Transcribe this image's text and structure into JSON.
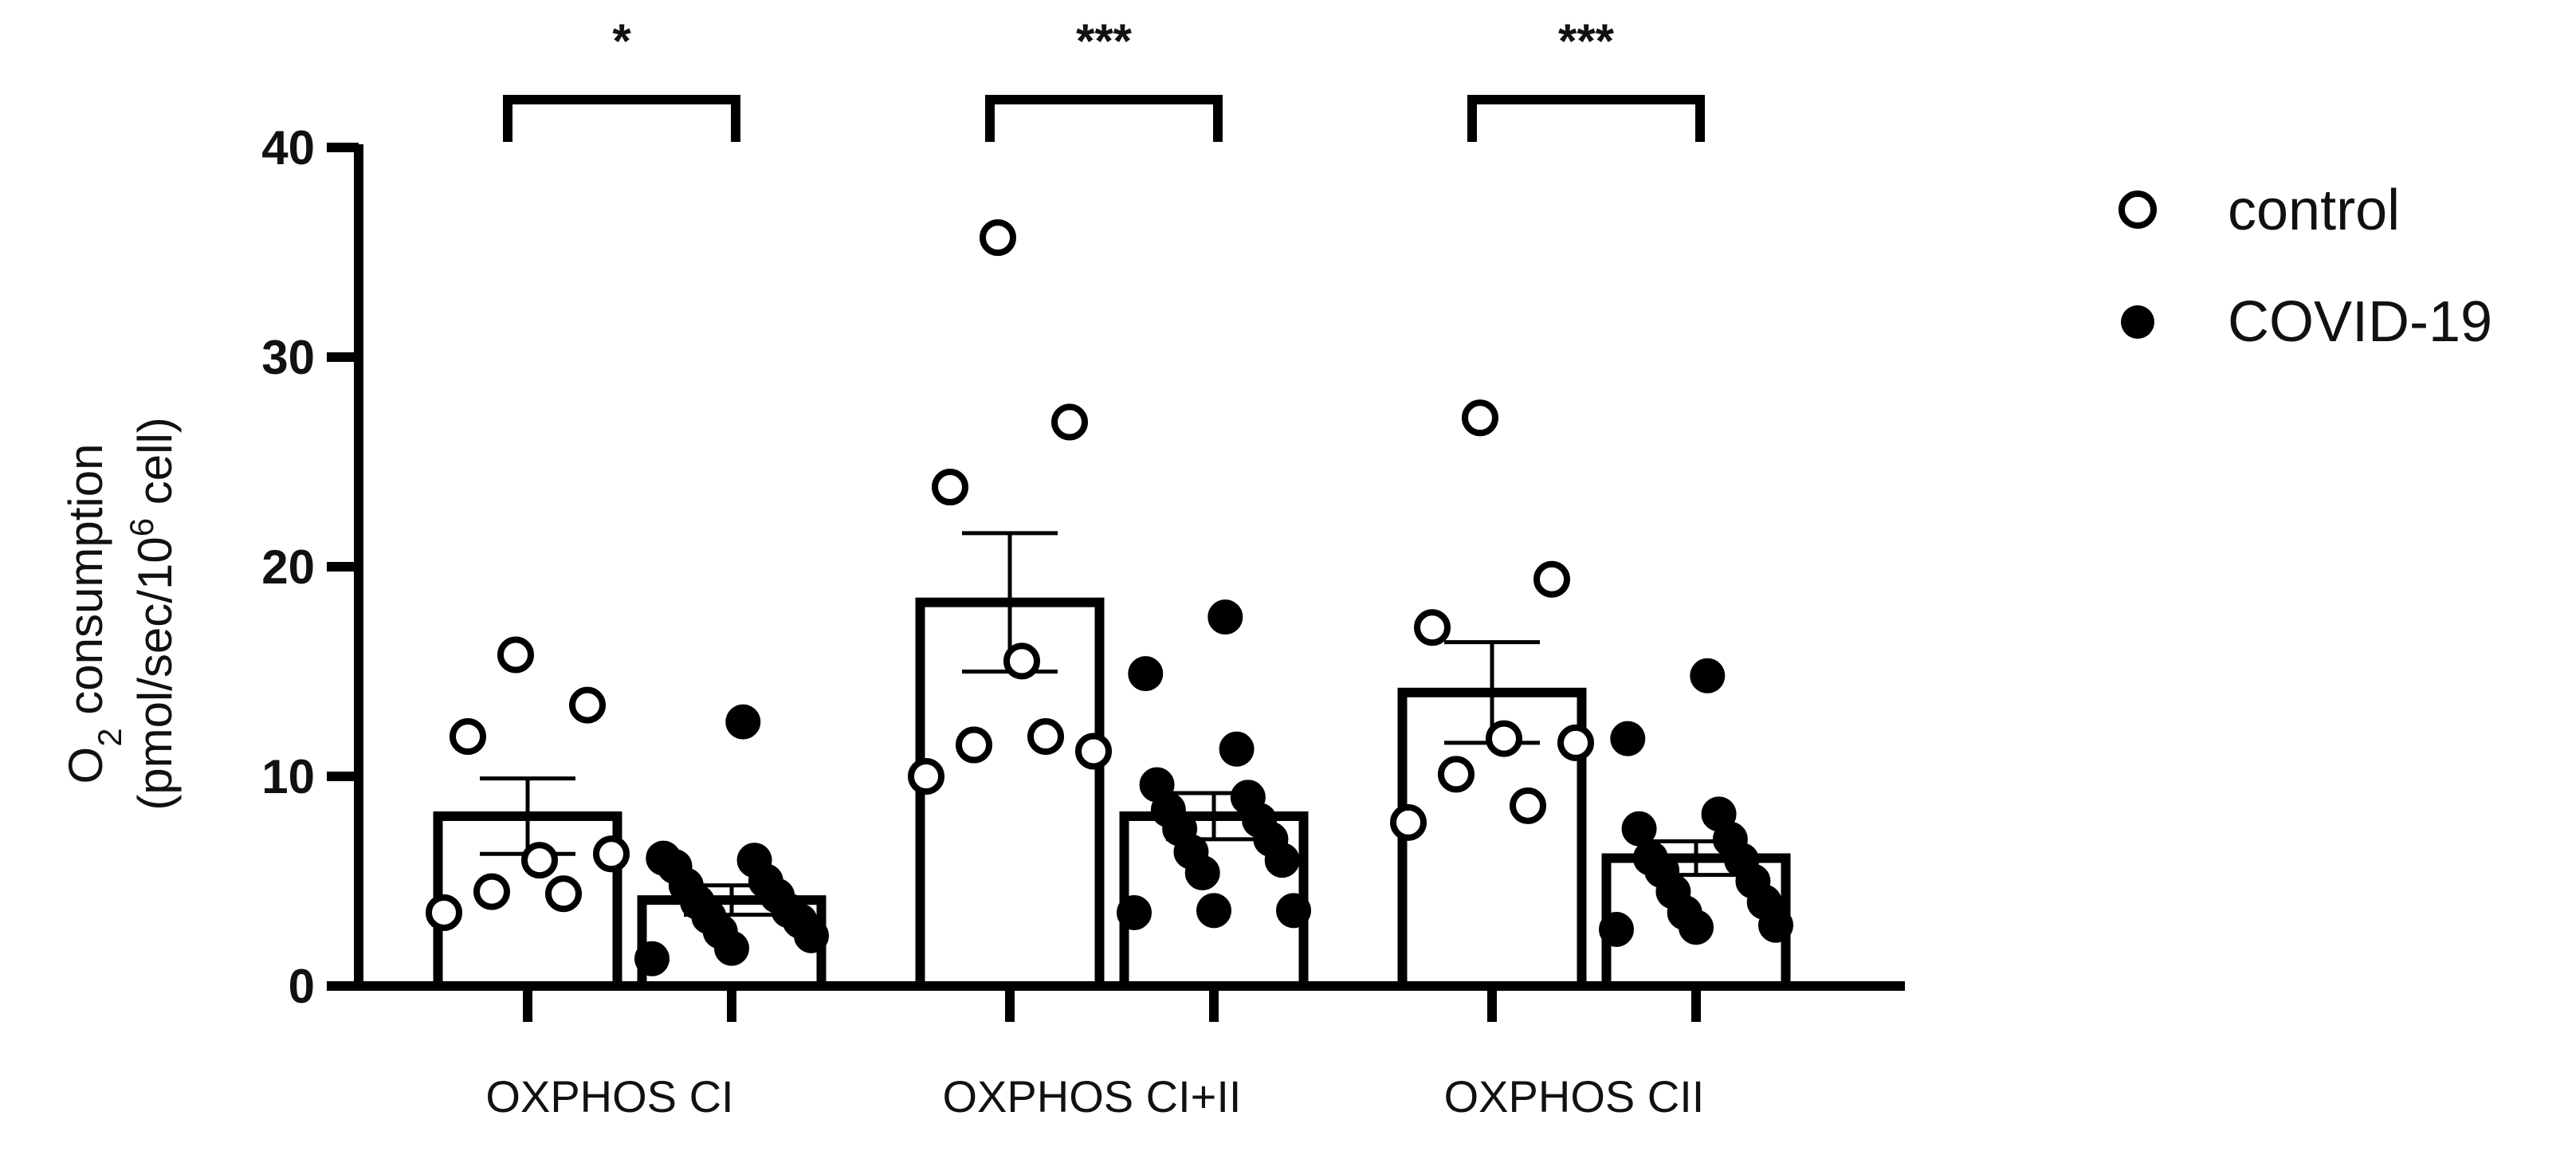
{
  "chart_data": {
    "type": "bar",
    "ylabel_line1_main": "O",
    "ylabel_line1_sub": "2",
    "ylabel_line1_rest": " consumption",
    "ylabel_line2_main": "(pmol/sec/10",
    "ylabel_line2_sup": "6",
    "ylabel_line2_rest": " cell)",
    "ylim": [
      0,
      40
    ],
    "yticks": [
      "0",
      "10",
      "20",
      "30",
      "40"
    ],
    "categories": [
      "OXPHOS CI",
      "OXPHOS CI+II",
      "OXPHOS CII"
    ],
    "series": [
      {
        "name": "control",
        "means": [
          8.1,
          18.3,
          14.0
        ],
        "sem": [
          1.8,
          3.3,
          2.4
        ],
        "points": [
          [
            3.5,
            4.4,
            4.5,
            6.3,
            6.0,
            11.9,
            13.4,
            15.8
          ],
          [
            10.0,
            11.9,
            11.5,
            11.2,
            15.5,
            23.8,
            26.9,
            35.7
          ],
          [
            7.8,
            8.6,
            10.1,
            11.6,
            11.8,
            17.1,
            19.4,
            27.1
          ]
        ]
      },
      {
        "name": "COVID-19",
        "means": [
          4.1,
          8.1,
          6.1
        ],
        "sem": [
          0.7,
          1.1,
          0.8
        ],
        "points": [
          [
            1.3,
            1.8,
            2.4,
            2.6,
            3.1,
            3.3,
            3.6,
            4.0,
            4.3,
            4.8,
            5.0,
            5.7,
            6.0,
            6.1,
            12.6
          ],
          [
            3.5,
            3.6,
            3.6,
            5.4,
            6.0,
            6.4,
            7.0,
            7.5,
            7.9,
            8.4,
            9.0,
            9.6,
            11.3,
            14.9,
            17.6
          ],
          [
            2.7,
            2.8,
            2.9,
            3.5,
            4.0,
            4.5,
            5.0,
            5.5,
            6.0,
            6.1,
            7.0,
            7.5,
            8.2,
            11.8,
            14.8
          ]
        ]
      }
    ],
    "significance": [
      "*",
      "***",
      "***"
    ],
    "legend": {
      "position": "top-right",
      "entries": [
        "control",
        "COVID-19"
      ]
    },
    "colors": {
      "control": "#ffffff",
      "covid": "#000000",
      "stroke": "#000000"
    }
  }
}
